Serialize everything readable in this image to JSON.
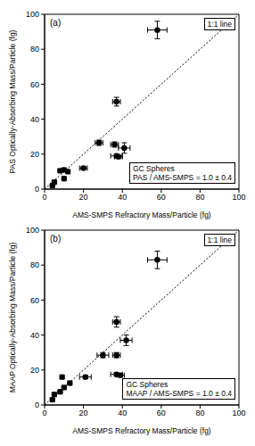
{
  "chart_data": [
    {
      "type": "scatter",
      "xlabel": "AMS-SMPS Refractory Mass/Particle (fg)",
      "ylabel": "PAS Optically-Absorbing Mass/Particle (fg)",
      "annotations": [
        "(a)",
        "GC Spheres",
        "PAS / AMS-SMPS = 1.0 ± 0.4"
      ],
      "xlim": [
        0,
        100
      ],
      "ylim": [
        0,
        100
      ],
      "xticks": [
        0,
        20,
        40,
        60,
        80,
        100
      ],
      "yticks": [
        0,
        20,
        40,
        60,
        80,
        100
      ],
      "x": [
        58,
        37,
        28,
        36,
        41,
        37,
        38,
        20,
        10,
        8,
        12,
        10,
        5,
        4
      ],
      "values": [
        91,
        50,
        26.5,
        25.5,
        23.5,
        19,
        18.5,
        12,
        11,
        10.5,
        10,
        6,
        4,
        2
      ],
      "x_error": [
        5,
        2,
        2,
        2,
        3,
        3,
        2,
        2,
        1,
        1,
        1,
        1,
        1,
        1
      ],
      "y_error": [
        5,
        2.5,
        1.5,
        1.5,
        3,
        1,
        1,
        1,
        1,
        1,
        1,
        1,
        1,
        1
      ],
      "color": "#000000",
      "marker": "circle",
      "legend": "upper right",
      "reference_line": {
        "name": "1:1 line",
        "x": [
          0,
          100
        ],
        "values": [
          0,
          100
        ],
        "line_style": "dotted"
      }
    },
    {
      "type": "scatter",
      "xlabel": "AMS-SMPS Refractory Mass/Particle (fg)",
      "ylabel": "MAAP Optically-Absorbing Mass/Particle (fg)",
      "annotations": [
        "(b)",
        "GC Spheres",
        "MAAP / AMS-SMPS = 1.0 ± 0.4"
      ],
      "xlim": [
        0,
        100
      ],
      "ylim": [
        0,
        100
      ],
      "xticks": [
        0,
        20,
        40,
        60,
        80,
        100
      ],
      "yticks": [
        0,
        20,
        40,
        60,
        80,
        100
      ],
      "x": [
        58,
        37,
        42,
        30,
        37,
        37,
        39,
        21,
        9,
        13,
        10,
        8,
        5,
        4
      ],
      "values": [
        83,
        47.5,
        37,
        28.5,
        28.5,
        17.5,
        17,
        16,
        16,
        12.5,
        10,
        7.5,
        6,
        3
      ],
      "x_error": [
        5,
        2,
        3,
        3,
        2,
        3,
        2,
        3,
        1,
        1,
        1,
        1,
        1,
        1
      ],
      "y_error": [
        5,
        3,
        3,
        1.5,
        1.5,
        1,
        1,
        1,
        1,
        1,
        1,
        1,
        1,
        1
      ],
      "color": "#000000",
      "marker": "circle",
      "legend": "upper right",
      "reference_line": {
        "name": "1:1 line",
        "x": [
          0,
          100
        ],
        "values": [
          0,
          100
        ],
        "line_style": "dotted"
      }
    }
  ]
}
